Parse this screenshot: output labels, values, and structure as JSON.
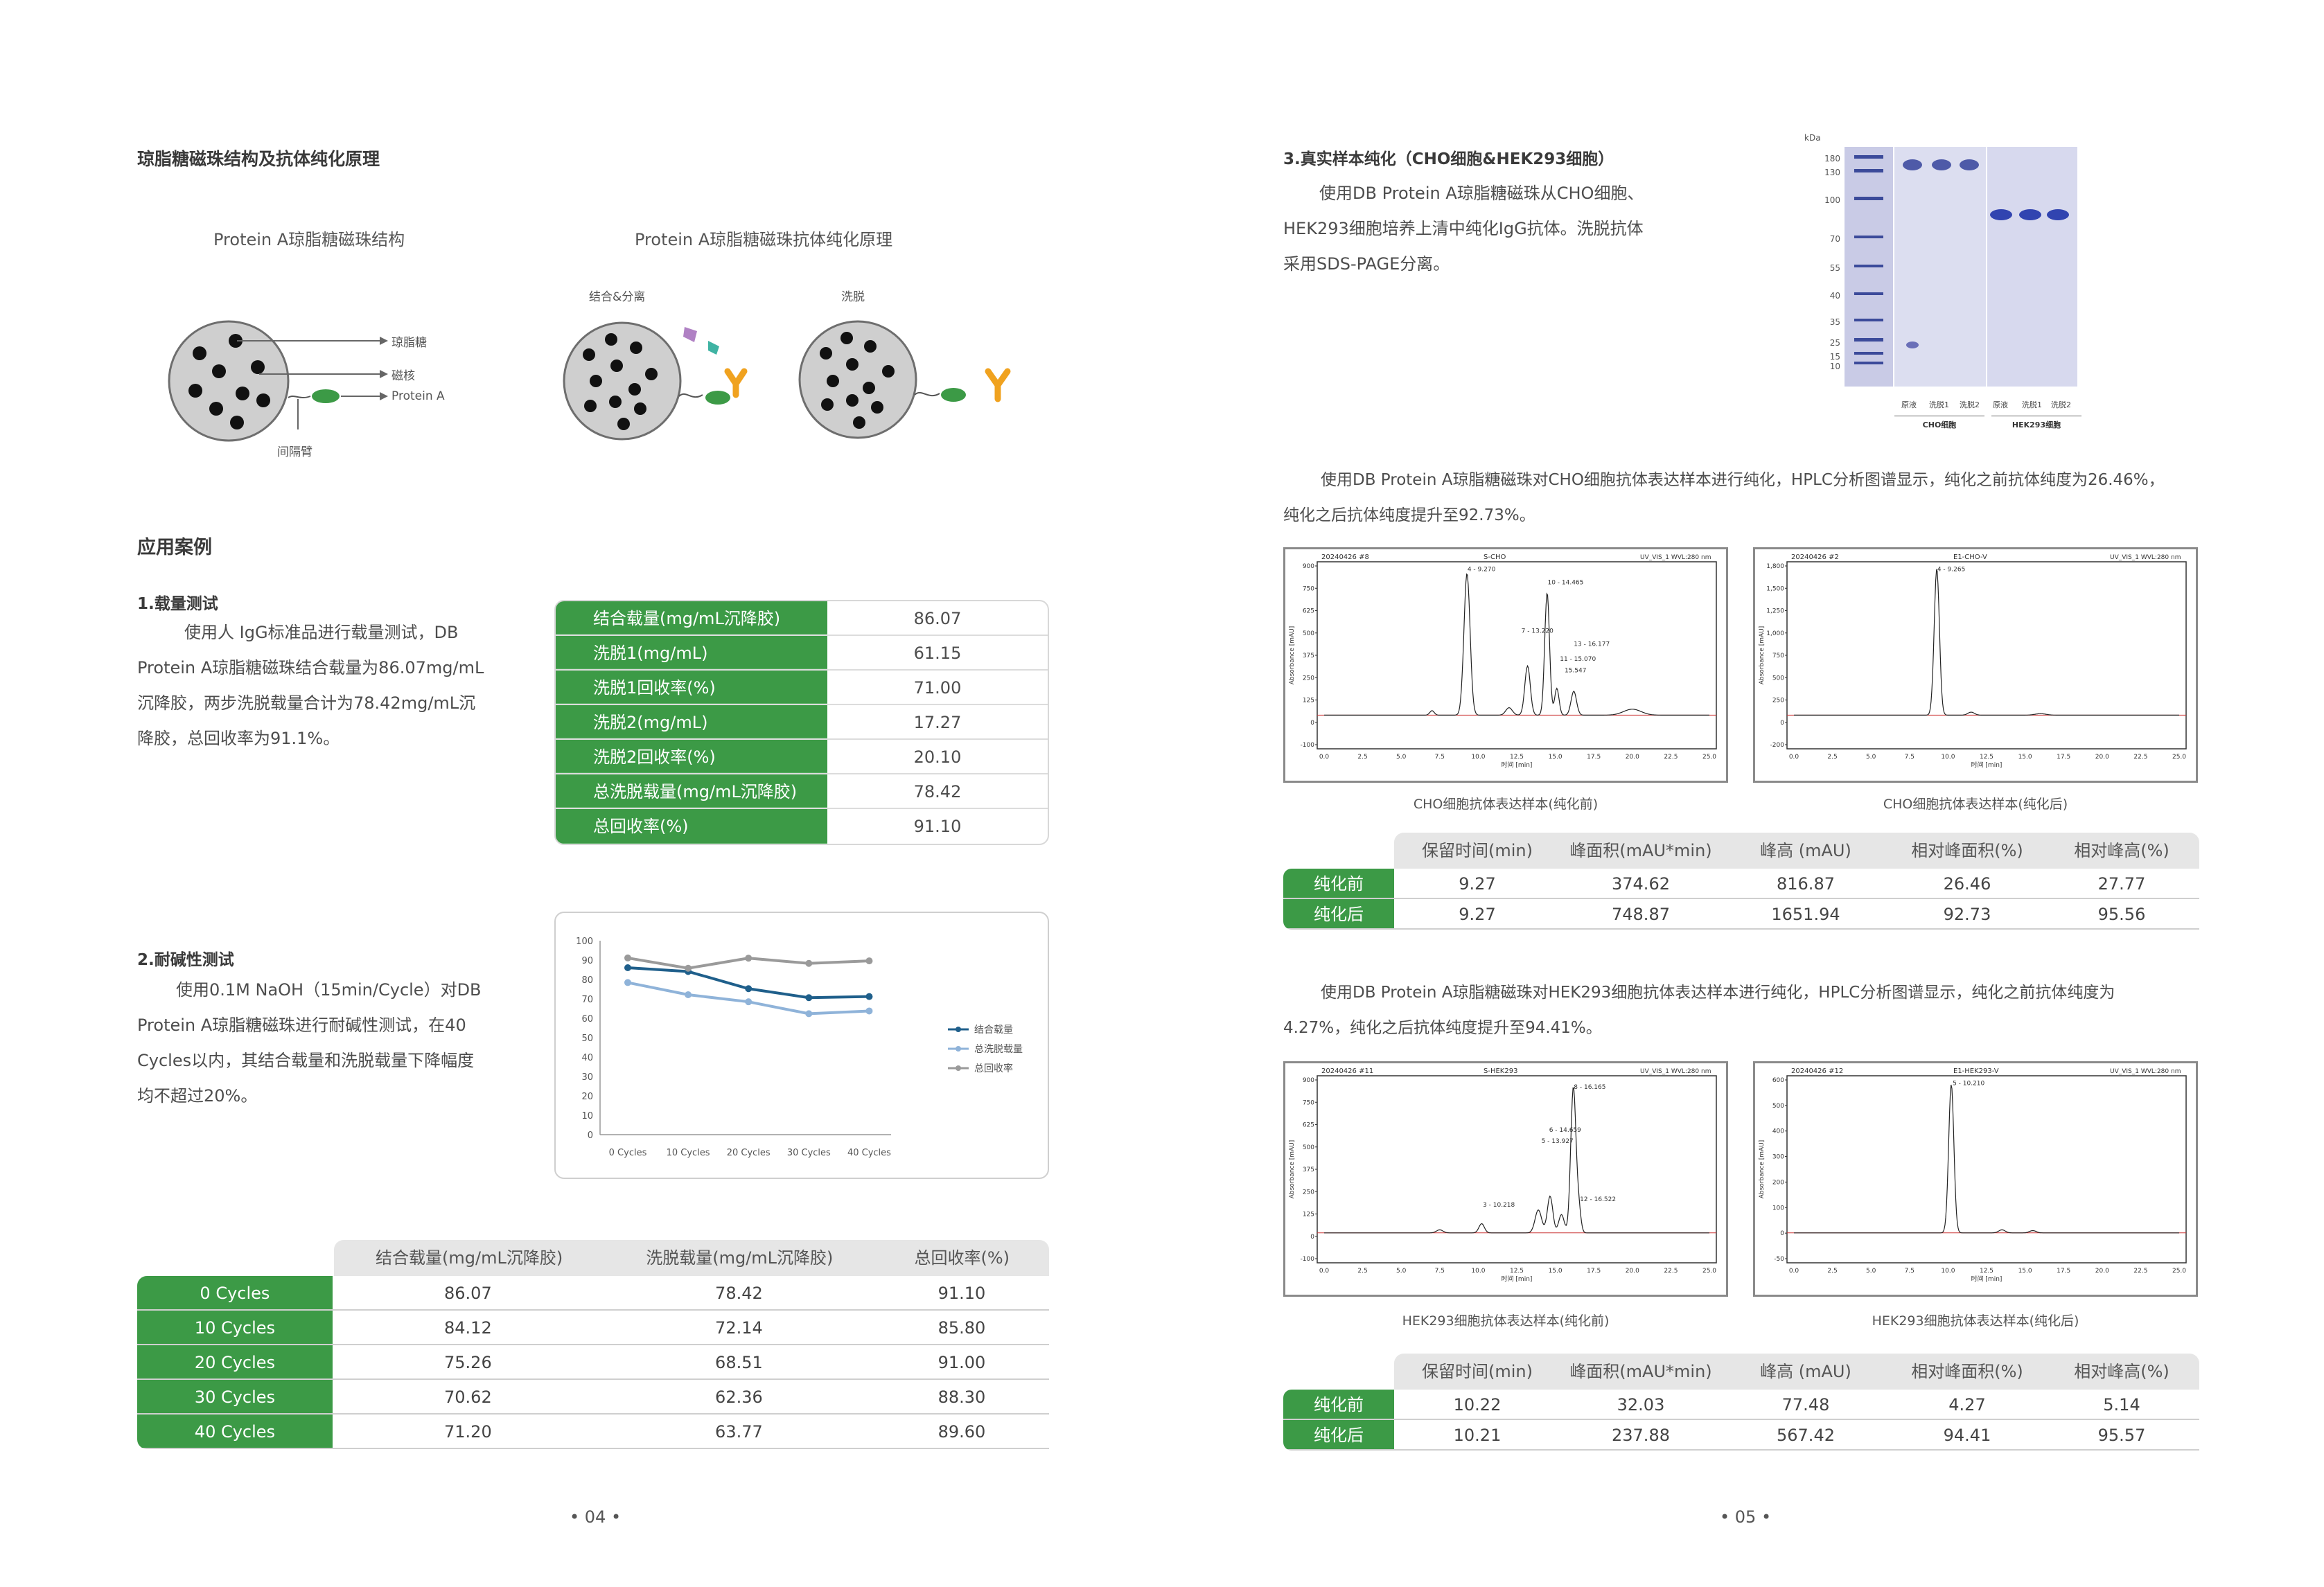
{
  "left": {
    "section_title": "琼脂糖磁珠结构及抗体纯化原理",
    "diagram": {
      "structure_title": "Protein A琼脂糖磁珠结构",
      "principle_title": "Protein A琼脂糖磁珠抗体纯化原理",
      "label_agarose": "琼脂糖",
      "label_core": "磁核",
      "label_proteinA": "Protein A",
      "label_spacer": "间隔臂",
      "label_bind": "结合&分离",
      "label_elute": "洗脱"
    },
    "cases_title": "应用案例",
    "case1": {
      "title": "1.载量测试",
      "lines": [
        "使用人 IgG标准品进行载量测试，DB",
        "Protein A琼脂糖磁珠结合载量为86.07mg/mL",
        "沉降胶，两步洗脱载量合计为78.42mg/mL沉",
        "降胶，总回收率为91.1%。"
      ],
      "table": [
        {
          "name": "结合载量(mg/mL沉降胶)",
          "value": "86.07"
        },
        {
          "name": "洗脱1(mg/mL)",
          "value": "61.15"
        },
        {
          "name": "洗脱1回收率(%)",
          "value": "71.00"
        },
        {
          "name": "洗脱2(mg/mL)",
          "value": "17.27"
        },
        {
          "name": "洗脱2回收率(%)",
          "value": "20.10"
        },
        {
          "name": "总洗脱载量(mg/mL沉降胶)",
          "value": "78.42"
        },
        {
          "name": "总回收率(%)",
          "value": "91.10"
        }
      ]
    },
    "case2": {
      "title": "2.耐碱性测试",
      "lines": [
        "使用0.1M NaOH（15min/Cycle）对DB",
        "Protein A琼脂糖磁珠进行耐碱性测试，在40",
        "Cycles以内，其结合载量和洗脱载量下降幅度",
        "均不超过20%。"
      ]
    },
    "cycles_table": {
      "headers": [
        "结合载量(mg/mL沉降胶)",
        "洗脱载量(mg/mL沉降胶)",
        "总回收率(%)"
      ],
      "rows": [
        {
          "label": "0 Cycles",
          "cells": [
            "86.07",
            "78.42",
            "91.10"
          ]
        },
        {
          "label": "10 Cycles",
          "cells": [
            "84.12",
            "72.14",
            "85.80"
          ]
        },
        {
          "label": "20 Cycles",
          "cells": [
            "75.26",
            "68.51",
            "91.00"
          ]
        },
        {
          "label": "30 Cycles",
          "cells": [
            "70.62",
            "62.36",
            "88.30"
          ]
        },
        {
          "label": "40 Cycles",
          "cells": [
            "71.20",
            "63.77",
            "89.60"
          ]
        }
      ]
    },
    "page_number": "• 04 •"
  },
  "chart_data": {
    "type": "line",
    "categories": [
      "0 Cycles",
      "10 Cycles",
      "20 Cycles",
      "30 Cycles",
      "40 Cycles"
    ],
    "series": [
      {
        "name": "结合载量",
        "color": "#1f5f8b",
        "values": [
          86.07,
          84.12,
          75.26,
          70.62,
          71.2
        ]
      },
      {
        "name": "总洗脱载量",
        "color": "#8fb3d9",
        "values": [
          78.42,
          72.14,
          68.51,
          62.36,
          63.77
        ]
      },
      {
        "name": "总回收率",
        "color": "#9a9a9a",
        "values": [
          91.1,
          85.8,
          91.0,
          88.3,
          89.6
        ]
      }
    ],
    "yticks": [
      "0",
      "10",
      "20",
      "30",
      "40",
      "50",
      "60",
      "70",
      "80",
      "90",
      "100"
    ],
    "ylim": [
      0,
      100
    ],
    "legend": "right",
    "title": "",
    "xlabel": "",
    "ylabel": ""
  },
  "right": {
    "section_title": "3.真实样本纯化（CHO细胞&HEK293细胞）",
    "intro_lines": [
      "使用DB Protein A琼脂糖磁珠从CHO细胞、",
      "HEK293细胞培养上清中纯化IgG抗体。洗脱抗体",
      "采用SDS-PAGE分离。"
    ],
    "gel": {
      "unit": "kDa",
      "markers": [
        "180",
        "130",
        "100",
        "70",
        "55",
        "40",
        "35",
        "25",
        "15",
        "10"
      ],
      "lanes": [
        "原液",
        "洗脱1",
        "洗脱2",
        "原液",
        "洗脱1",
        "洗脱2"
      ],
      "groups": [
        "CHO细胞",
        "HEK293细胞"
      ]
    },
    "cho_text": [
      "使用DB Protein A琼脂糖磁珠对CHO细胞抗体表达样本进行纯化，HPLC分析图谱显示，纯化之前抗体纯度为26.46%，",
      "纯化之后抗体纯度提升至92.73%。"
    ],
    "cho_before": {
      "caption": "CHO细胞抗体表达样本(纯化前)",
      "header_left": "20240426 #8",
      "header_mid": "S-CHO",
      "header_right": "UV_VIS_1 WVL:280 nm",
      "yaxis": "Absorbance [mAU]",
      "xaxis": "时间 [min]",
      "yticks": [
        "900",
        "750",
        "625",
        "500",
        "375",
        "250",
        "125",
        "0",
        "-100"
      ],
      "xticks": [
        "0.0",
        "2.5",
        "5.0",
        "7.5",
        "10.0",
        "12.5",
        "15.0",
        "17.5",
        "20.0",
        "22.5",
        "25.0"
      ],
      "peaks": [
        "4 - 9.270",
        "10 - 14.465",
        "7 - 13.220",
        "13 - 16.177",
        "11 - 15.070",
        "15.547"
      ]
    },
    "cho_after": {
      "caption": "CHO细胞抗体表达样本(纯化后)",
      "header_left": "20240426 #2",
      "header_mid": "E1-CHO-V",
      "header_right": "UV_VIS_1 WVL:280 nm",
      "yaxis": "Absorbance [mAU]",
      "xaxis": "时间 [min]",
      "yticks": [
        "1,800",
        "1,500",
        "1,250",
        "1,000",
        "750",
        "500",
        "250",
        "0",
        "-200"
      ],
      "xticks": [
        "0.0",
        "2.5",
        "5.0",
        "7.5",
        "10.0",
        "12.5",
        "15.0",
        "17.5",
        "20.0",
        "22.5",
        "25.0"
      ],
      "peaks": [
        "4 - 9.265"
      ]
    },
    "cho_table": {
      "headers": [
        "保留时间(min)",
        "峰面积(mAU*min)",
        "峰高 (mAU)",
        "相对峰面积(%)",
        "相对峰高(%)"
      ],
      "rows": [
        {
          "label": "纯化前",
          "cells": [
            "9.27",
            "374.62",
            "816.87",
            "26.46",
            "27.77"
          ]
        },
        {
          "label": "纯化后",
          "cells": [
            "9.27",
            "748.87",
            "1651.94",
            "92.73",
            "95.56"
          ]
        }
      ]
    },
    "hek_text": [
      "使用DB Protein A琼脂糖磁珠对HEK293细胞抗体表达样本进行纯化，HPLC分析图谱显示，纯化之前抗体纯度为",
      "4.27%，纯化之后抗体纯度提升至94.41%。"
    ],
    "hek_before": {
      "caption": "HEK293细胞抗体表达样本(纯化前)",
      "header_left": "20240426 #11",
      "header_mid": "S-HEK293",
      "header_right": "UV_VIS_1 WVL:280 nm",
      "yaxis": "Absorbance [mAU]",
      "xaxis": "时间 [min]",
      "yticks": [
        "900",
        "750",
        "625",
        "500",
        "375",
        "250",
        "125",
        "0",
        "-100"
      ],
      "xticks": [
        "0.0",
        "2.5",
        "5.0",
        "7.5",
        "10.0",
        "12.5",
        "15.0",
        "17.5",
        "20.0",
        "22.5",
        "25.0"
      ],
      "peaks": [
        "8 - 16.165",
        "6 - 14.659",
        "5 - 13.927",
        "12 - 16.522",
        "3 - 10.218"
      ]
    },
    "hek_after": {
      "caption": "HEK293细胞抗体表达样本(纯化后)",
      "header_left": "20240426 #12",
      "header_mid": "E1-HEK293-V",
      "header_right": "UV_VIS_1 WVL:280 nm",
      "yaxis": "Absorbance [mAU]",
      "xaxis": "时间 [min]",
      "yticks": [
        "600",
        "500",
        "400",
        "300",
        "200",
        "100",
        "0",
        "-50"
      ],
      "xticks": [
        "0.0",
        "2.5",
        "5.0",
        "7.5",
        "10.0",
        "12.5",
        "15.0",
        "17.5",
        "20.0",
        "22.5",
        "25.0"
      ],
      "peaks": [
        "5 - 10.210"
      ]
    },
    "hek_table": {
      "headers": [
        "保留时间(min)",
        "峰面积(mAU*min)",
        "峰高 (mAU)",
        "相对峰面积(%)",
        "相对峰高(%)"
      ],
      "rows": [
        {
          "label": "纯化前",
          "cells": [
            "10.22",
            "32.03",
            "77.48",
            "4.27",
            "5.14"
          ]
        },
        {
          "label": "纯化后",
          "cells": [
            "10.21",
            "237.88",
            "567.42",
            "94.41",
            "95.57"
          ]
        }
      ]
    },
    "page_number": "• 05 •"
  }
}
